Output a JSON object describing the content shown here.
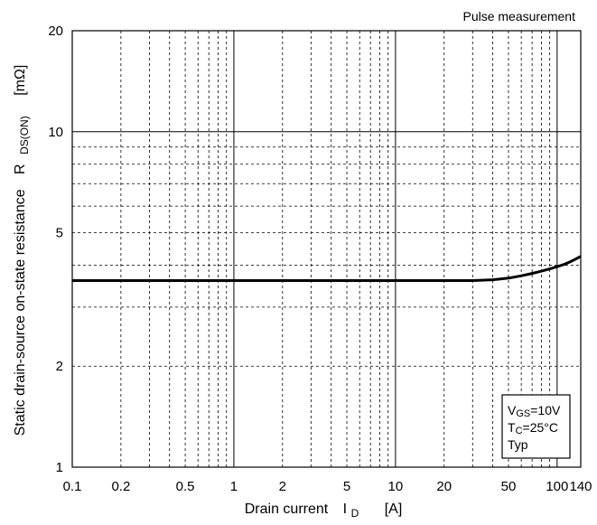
{
  "chart_data": {
    "type": "line",
    "title": "",
    "corner_note": "Pulse measurement",
    "x_axis": {
      "scale": "log",
      "range": [
        0.1,
        140
      ],
      "label_main": "Drain current",
      "label_symbol": "I",
      "label_sub": "D",
      "label_unit": "[A]",
      "tick_labels": [
        "0.1",
        "0.2",
        "0.5",
        "1",
        "2",
        "5",
        "10",
        "20",
        "50",
        "100",
        "140"
      ],
      "tick_values": [
        0.1,
        0.2,
        0.5,
        1,
        2,
        5,
        10,
        20,
        50,
        100,
        140
      ]
    },
    "y_axis": {
      "scale": "log",
      "range": [
        1,
        20
      ],
      "label_main": "Static drain-source on-state resistance",
      "label_symbol": "R",
      "label_sub": "DS(ON)",
      "label_unit": "[mΩ]",
      "tick_labels": [
        "1",
        "2",
        "5",
        "10",
        "20"
      ],
      "tick_values": [
        1,
        2,
        5,
        10,
        20
      ]
    },
    "grid": true,
    "conditions": {
      "line1_main": "V",
      "line1_sub": "GS",
      "line1_rest": "=10V",
      "line2_main": "T",
      "line2_sub": "C",
      "line2_rest": "=25°C",
      "line3": "Typ"
    },
    "series": [
      {
        "x": [
          0.1,
          0.5,
          1,
          5,
          10,
          20,
          30,
          40,
          50,
          60,
          70,
          80,
          90,
          100,
          110,
          120,
          130,
          140
        ],
        "y": [
          3.6,
          3.6,
          3.6,
          3.6,
          3.6,
          3.6,
          3.6,
          3.62,
          3.66,
          3.72,
          3.78,
          3.84,
          3.9,
          3.96,
          4.02,
          4.09,
          4.17,
          4.25
        ]
      }
    ]
  }
}
